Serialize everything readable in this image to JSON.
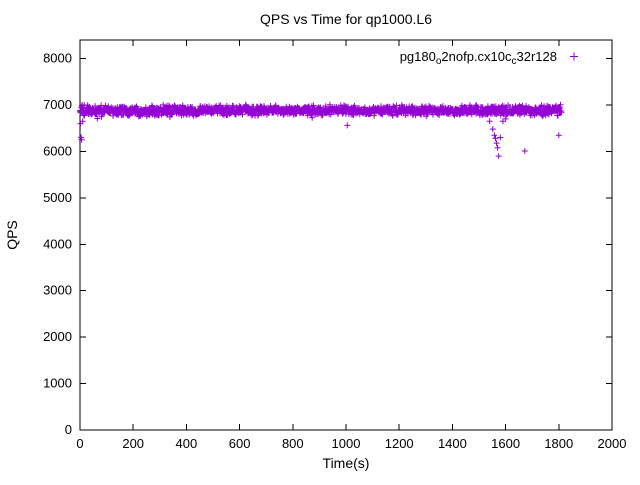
{
  "chart_data": {
    "type": "scatter",
    "title": "QPS vs Time for qp1000.L6",
    "xlabel": "Time(s)",
    "ylabel": "QPS",
    "xlim": [
      0,
      2000
    ],
    "ylim": [
      0,
      8400
    ],
    "xticks": [
      0,
      200,
      400,
      600,
      800,
      1000,
      1200,
      1400,
      1600,
      1800,
      2000
    ],
    "yticks": [
      0,
      1000,
      2000,
      3000,
      4000,
      5000,
      6000,
      7000,
      8000
    ],
    "grid": false,
    "legend_position": "top-right-inside",
    "marker": "plus",
    "marker_color": "#9400D3",
    "axis_color": "#000000",
    "series": [
      {
        "name": "pg180_o2nofp.cx10c_c32r128",
        "legend_segments": [
          {
            "text": "pg180",
            "sub": false
          },
          {
            "text": "o",
            "sub": true
          },
          {
            "text": "2nofp.cx10c",
            "sub": false
          },
          {
            "text": "c",
            "sub": true
          },
          {
            "text": "32r128",
            "sub": false
          }
        ],
        "band": {
          "description": "dense steady-state band of QPS samples",
          "x_min": 0,
          "x_max": 1810,
          "y_mean": 6880,
          "y_spread": 130,
          "low_tail_probability": 0.02,
          "low_tail_extra": 130,
          "n_points": 1500,
          "seed": 1234
        },
        "outliers": [
          [
            2,
            6600
          ],
          [
            4,
            6300
          ],
          [
            6,
            6250
          ],
          [
            10,
            6650
          ],
          [
            1005,
            6560
          ],
          [
            1540,
            6650
          ],
          [
            1552,
            6480
          ],
          [
            1558,
            6350
          ],
          [
            1562,
            6280
          ],
          [
            1566,
            6180
          ],
          [
            1570,
            6080
          ],
          [
            1574,
            5900
          ],
          [
            1580,
            6300
          ],
          [
            1590,
            6650
          ],
          [
            1600,
            6700
          ],
          [
            1672,
            6010
          ],
          [
            1800,
            6350
          ]
        ]
      }
    ]
  }
}
